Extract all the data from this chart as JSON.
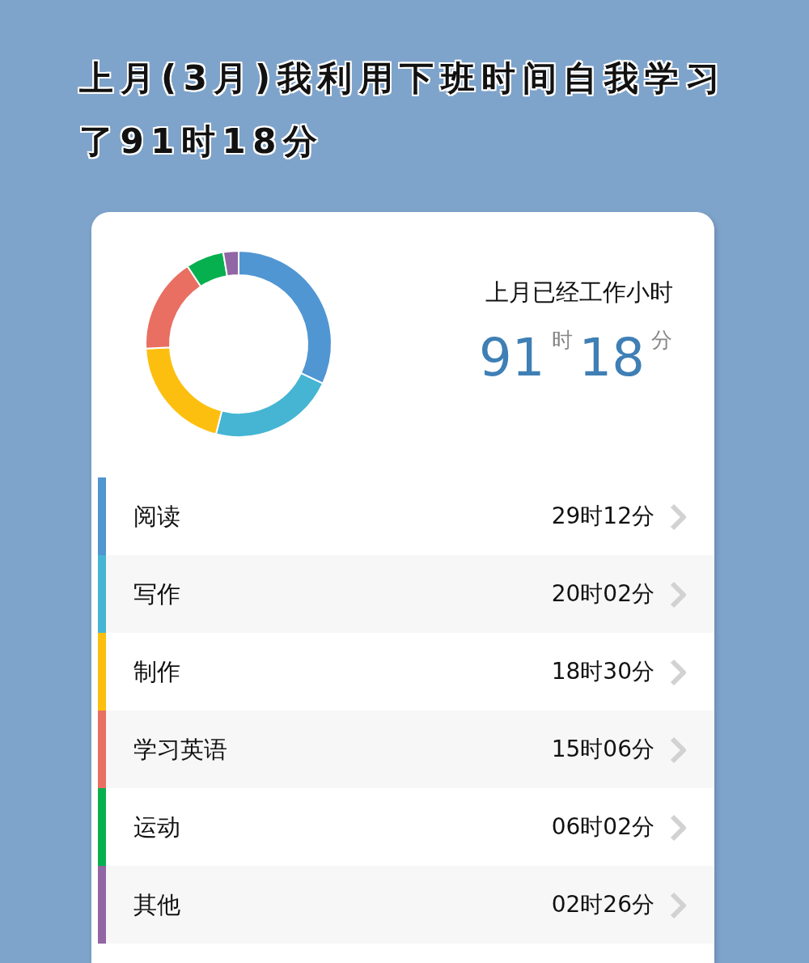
{
  "chart_data": {
    "type": "donut",
    "title": "上月(3月)我利用下班时间自我学习了91时18分",
    "annotations": [
      "上月已经工作小时",
      "91$^{时}$18$^{分}$"
    ],
    "categories": [
      "阅读",
      "写作",
      "制作",
      "学习英语",
      "运动",
      "其他"
    ],
    "values": [
      29.2,
      20.033,
      18.5,
      15.1,
      6.033,
      2.433
    ],
    "value_labels": [
      "29时12分",
      "20时02分",
      "18时30分",
      "15时06分",
      "06时02分",
      "02时26分"
    ],
    "colors": [
      "#5096d2",
      "#45b5d3",
      "#fdbf0f",
      "#e86f62",
      "#07b04f",
      "#9166a4"
    ],
    "legend": "bottom"
  }
}
